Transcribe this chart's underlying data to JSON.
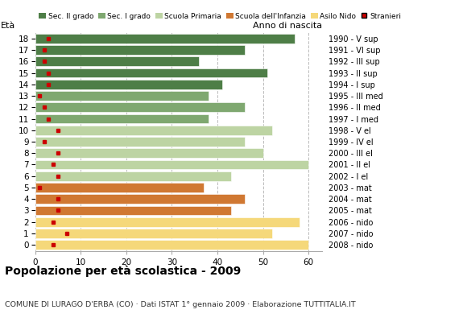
{
  "ages": [
    18,
    17,
    16,
    15,
    14,
    13,
    12,
    11,
    10,
    9,
    8,
    7,
    6,
    5,
    4,
    3,
    2,
    1,
    0
  ],
  "years": [
    "1990 - V sup",
    "1991 - VI sup",
    "1992 - III sup",
    "1993 - II sup",
    "1994 - I sup",
    "1995 - III med",
    "1996 - II med",
    "1997 - I med",
    "1998 - V el",
    "1999 - IV el",
    "2000 - III el",
    "2001 - II el",
    "2002 - I el",
    "2003 - mat",
    "2004 - mat",
    "2005 - mat",
    "2006 - nido",
    "2007 - nido",
    "2008 - nido"
  ],
  "bar_values": [
    57,
    46,
    36,
    51,
    41,
    38,
    46,
    38,
    52,
    46,
    50,
    60,
    43,
    37,
    46,
    43,
    58,
    52,
    60
  ],
  "bar_colors": [
    "#4e7e47",
    "#4e7e47",
    "#4e7e47",
    "#4e7e47",
    "#4e7e47",
    "#7fa870",
    "#7fa870",
    "#7fa870",
    "#bdd4a3",
    "#bdd4a3",
    "#bdd4a3",
    "#bdd4a3",
    "#bdd4a3",
    "#d07832",
    "#d07832",
    "#d07832",
    "#f5d87a",
    "#f5d87a",
    "#f5d87a"
  ],
  "stranieri_x": [
    3,
    2,
    2,
    3,
    3,
    1,
    2,
    3,
    5,
    2,
    5,
    4,
    5,
    1,
    5,
    5,
    4,
    7,
    4
  ],
  "legend_labels": [
    "Sec. II grado",
    "Sec. I grado",
    "Scuola Primaria",
    "Scuola dell'Infanzia",
    "Asilo Nido",
    "Stranieri"
  ],
  "legend_colors": [
    "#4e7e47",
    "#7fa870",
    "#bdd4a3",
    "#d07832",
    "#f5d87a",
    "#cc0000"
  ],
  "title": "Popolazione per età scolastica - 2009",
  "subtitle": "COMUNE DI LURAGO D'ERBA (CO) · Dati ISTAT 1° gennaio 2009 · Elaborazione TUTTITALIA.IT",
  "eta_label": "Età",
  "anno_label": "Anno di nascita",
  "xlim": [
    0,
    63
  ],
  "ylim_min": -0.55,
  "ylim_max": 18.55,
  "background_color": "#ffffff",
  "bar_height": 0.82,
  "grid_color": "#bbbbbb",
  "grid_xticks": [
    0,
    10,
    20,
    30,
    40,
    50,
    60
  ]
}
